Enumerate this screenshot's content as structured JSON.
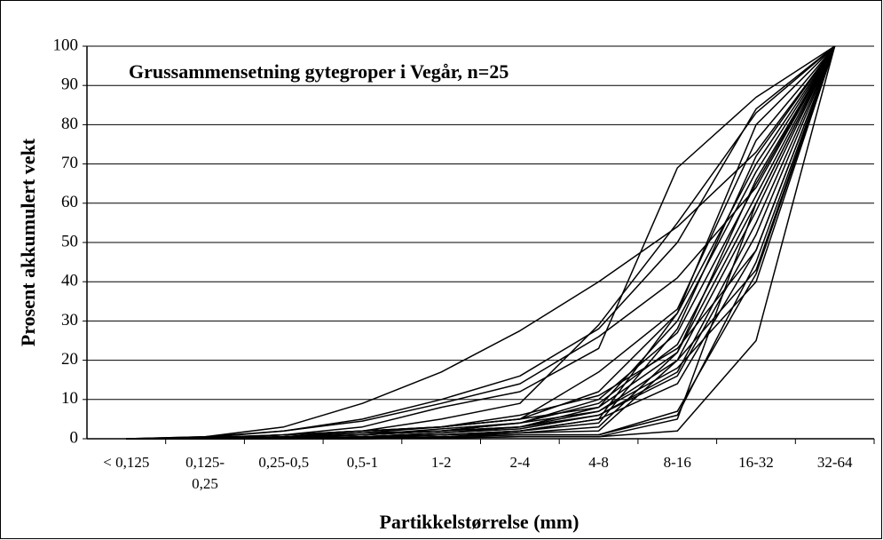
{
  "chart_data": {
    "type": "line",
    "title": "Grussammensetning gytegroper i Vegår, n=25",
    "y_label": "Prosent akkumulert vekt",
    "x_label": "Partikkelstørrelse (mm)",
    "categories": [
      "< 0,125",
      "0,125- 0,25",
      "0,25-0,5",
      "0,5-1",
      "1-2",
      "2-4",
      "4-8",
      "8-16",
      "16-32",
      "32-64"
    ],
    "ylim": [
      0,
      100
    ],
    "yticks": [
      0,
      10,
      20,
      30,
      40,
      50,
      60,
      70,
      80,
      90,
      100
    ],
    "grid": true,
    "series": [
      {
        "color": "#000000",
        "values": [
          0,
          0.5,
          3,
          9,
          17,
          27.5,
          40,
          54,
          73,
          100
        ]
      },
      {
        "color": "#000000",
        "values": [
          0,
          0.5,
          2,
          5,
          10,
          16,
          28,
          50,
          84,
          100
        ]
      },
      {
        "color": "#000000",
        "values": [
          0,
          0.3,
          2,
          4.5,
          9,
          14,
          26,
          41,
          64,
          100
        ]
      },
      {
        "color": "#000000",
        "values": [
          0,
          0.2,
          1,
          3,
          8,
          12,
          23,
          69,
          87,
          100
        ]
      },
      {
        "color": "#000000",
        "values": [
          0,
          0.2,
          1,
          2,
          5,
          9,
          29,
          55,
          83,
          100
        ]
      },
      {
        "color": "#000000",
        "values": [
          0,
          0,
          0.5,
          2,
          3,
          5,
          17,
          33,
          76,
          100
        ]
      },
      {
        "color": "#000000",
        "values": [
          0,
          0,
          0.5,
          1.5,
          3,
          5,
          12,
          32,
          70,
          100
        ]
      },
      {
        "color": "#000000",
        "values": [
          0,
          0,
          0.5,
          1,
          2.5,
          4,
          10,
          27,
          65,
          100
        ]
      },
      {
        "color": "#000000",
        "values": [
          0,
          0,
          0.3,
          1,
          2,
          4,
          9,
          24,
          62,
          100
        ]
      },
      {
        "color": "#000000",
        "values": [
          0,
          0,
          0.3,
          1,
          2,
          3,
          8,
          22,
          60,
          100
        ]
      },
      {
        "color": "#000000",
        "values": [
          0,
          0,
          0.2,
          1,
          2,
          3,
          7,
          20,
          58,
          100
        ]
      },
      {
        "color": "#000000",
        "values": [
          0,
          0,
          0.2,
          0.5,
          1.5,
          3,
          6,
          17,
          55,
          100
        ]
      },
      {
        "color": "#000000",
        "values": [
          0,
          0,
          0.2,
          0.5,
          1.5,
          2.5,
          6,
          16,
          52,
          100
        ]
      },
      {
        "color": "#000000",
        "values": [
          0,
          0,
          0.2,
          0.5,
          1,
          2,
          5,
          14,
          48,
          100
        ]
      },
      {
        "color": "#000000",
        "values": [
          0,
          0,
          0,
          0.5,
          1,
          2,
          5,
          32,
          80,
          100
        ]
      },
      {
        "color": "#000000",
        "values": [
          0,
          0,
          0,
          0.3,
          1,
          2,
          4,
          28,
          72,
          100
        ]
      },
      {
        "color": "#000000",
        "values": [
          0,
          0,
          0,
          0.3,
          1,
          1.5,
          3,
          22,
          66,
          100
        ]
      },
      {
        "color": "#000000",
        "values": [
          0,
          0,
          0,
          0.2,
          0.5,
          1.5,
          2,
          20,
          43,
          100
        ]
      },
      {
        "color": "#000000",
        "values": [
          0,
          0,
          0,
          0.2,
          0.5,
          1,
          1,
          7,
          42,
          100
        ]
      },
      {
        "color": "#000000",
        "values": [
          0,
          0,
          0,
          0,
          0.5,
          1,
          1,
          6,
          45,
          100
        ]
      },
      {
        "color": "#000000",
        "values": [
          0,
          0,
          0,
          0,
          0.3,
          0.5,
          0.5,
          5,
          60,
          100
        ]
      },
      {
        "color": "#000000",
        "values": [
          0,
          0,
          0,
          0,
          0.2,
          0.5,
          0.5,
          2,
          25,
          100
        ]
      },
      {
        "color": "#000000",
        "values": [
          0,
          0.3,
          1,
          2,
          3,
          6,
          11,
          23,
          48,
          100
        ]
      },
      {
        "color": "#000000",
        "values": [
          0,
          0.2,
          1,
          2,
          3,
          5,
          8,
          30,
          68,
          100
        ]
      },
      {
        "color": "#000000",
        "values": [
          0,
          0.2,
          0.5,
          1.5,
          2,
          4,
          7,
          18,
          40,
          100
        ]
      }
    ]
  }
}
